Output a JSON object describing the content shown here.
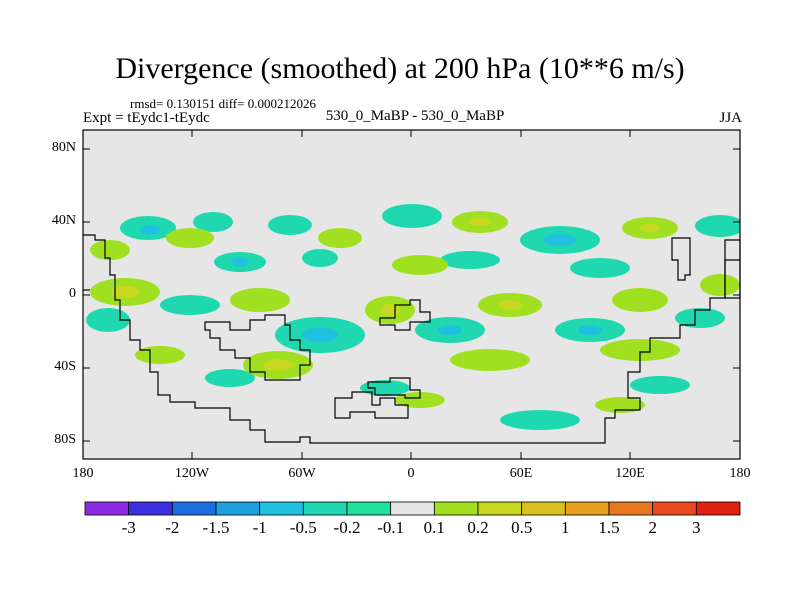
{
  "title": "Divergence (smoothed) at 200 hPa (10**6 m/s)",
  "stats_line": "rmsd= 0.130151  diff= 0.000212026",
  "experiment_line": "Expt = tEydc1-tEydc",
  "comparison_line": "530_0_MaBP - 530_0_MaBP",
  "season": "JJA",
  "map": {
    "projection": "cylindrical equidistant",
    "lon_range": [
      -180,
      180
    ],
    "lat_range": [
      -90,
      90
    ],
    "background_color": "#e6e6e6",
    "y_ticks": [
      "80N",
      "40N",
      "0",
      "40S",
      "80S"
    ],
    "x_ticks": [
      "180",
      "120W",
      "60W",
      "0",
      "60E",
      "120E",
      "180"
    ]
  },
  "colorbar": {
    "colors": [
      "#8a2be2",
      "#3a30e0",
      "#1a6ee0",
      "#1f9fe0",
      "#20c0e0",
      "#20d8b0",
      "#20e09a",
      "#e6e6e6",
      "#a0e020",
      "#c8d820",
      "#d8c020",
      "#e8a020",
      "#e87820",
      "#e84a20",
      "#e02010"
    ],
    "labels": [
      "-3",
      "-2",
      "-1.5",
      "-1",
      "-0.5",
      "-0.2",
      "-0.1",
      "0.1",
      "0.2",
      "0.5",
      "1",
      "1.5",
      "2",
      "3"
    ]
  }
}
